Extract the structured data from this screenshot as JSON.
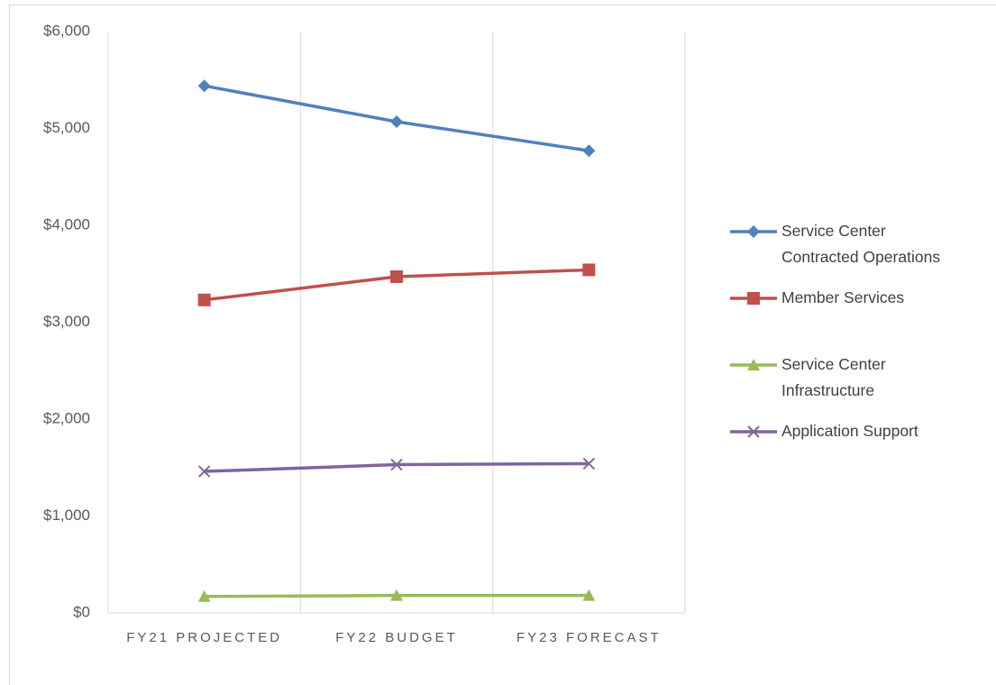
{
  "chart_data": {
    "type": "line",
    "categories": [
      "FY21 PROJECTED",
      "FY22 BUDGET",
      "FY23 FORECAST"
    ],
    "series": [
      {
        "name": "Service Center Contracted Operations",
        "color": "#4f81bd",
        "marker": "diamond",
        "values": [
          5440,
          5070,
          4770
        ]
      },
      {
        "name": "Member Services",
        "color": "#c0504d",
        "marker": "square",
        "values": [
          3230,
          3470,
          3540
        ]
      },
      {
        "name": "Service Center Infrastructure",
        "color": "#9bbb59",
        "marker": "triangle",
        "values": [
          170,
          180,
          180
        ]
      },
      {
        "name": "Application Support",
        "color": "#8064a2",
        "marker": "x",
        "values": [
          1460,
          1530,
          1540
        ]
      }
    ],
    "ylim": [
      0,
      6000
    ],
    "yticks": [
      {
        "value": 0,
        "label": "$0"
      },
      {
        "value": 1000,
        "label": "$1,000"
      },
      {
        "value": 2000,
        "label": "$2,000"
      },
      {
        "value": 3000,
        "label": "$3,000"
      },
      {
        "value": 4000,
        "label": "$4,000"
      },
      {
        "value": 5000,
        "label": "$5,000"
      },
      {
        "value": 6000,
        "label": "$6,000"
      }
    ],
    "grid": true,
    "legend": "right"
  }
}
